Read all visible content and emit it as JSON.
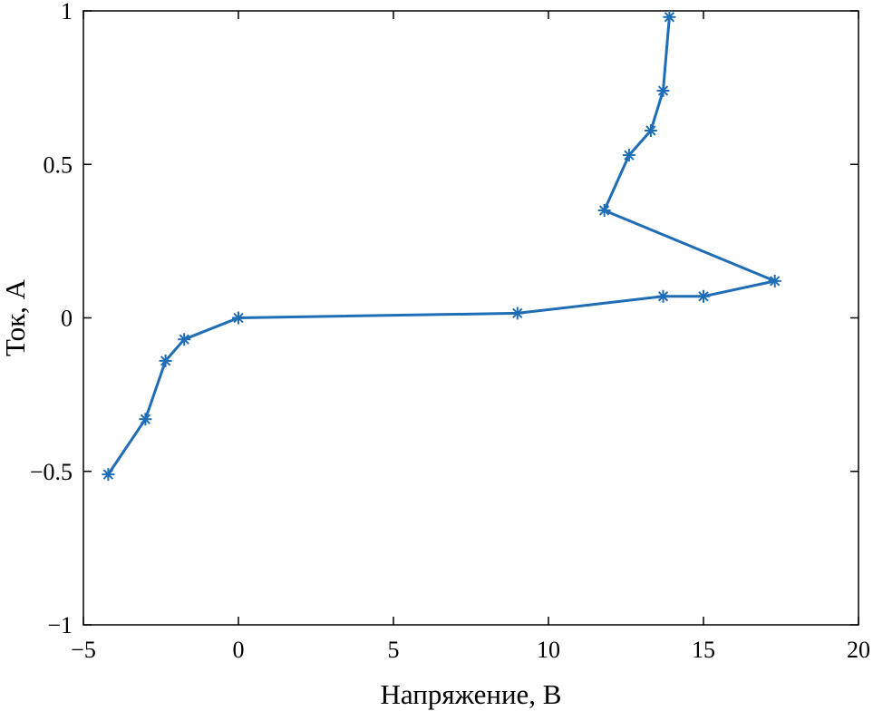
{
  "chart_data": {
    "type": "line",
    "title": "",
    "xlabel": "Напряжение, В",
    "ylabel": "Ток, А",
    "xlim": [
      -5,
      20
    ],
    "ylim": [
      -1,
      1
    ],
    "x_ticks": [
      -5,
      0,
      5,
      10,
      15,
      20
    ],
    "y_ticks": [
      -1,
      -0.5,
      0,
      0.5,
      1
    ],
    "x_tick_labels": [
      "−5",
      "0",
      "5",
      "10",
      "15",
      "20"
    ],
    "y_tick_labels": [
      "−1",
      "−0.5",
      "0",
      "0.5",
      "1"
    ],
    "grid": false,
    "marker": "asterisk",
    "color": "#1f6db5",
    "series": [
      {
        "x": [
          -4.2,
          -3.0,
          -2.35,
          -1.75,
          0.0,
          9.0,
          13.7,
          15.0,
          17.3,
          11.8,
          12.6,
          13.3,
          13.7,
          13.9
        ],
        "y": [
          -0.51,
          -0.33,
          -0.14,
          -0.07,
          0.0,
          0.015,
          0.07,
          0.07,
          0.12,
          0.35,
          0.53,
          0.61,
          0.74,
          0.98
        ]
      }
    ]
  }
}
